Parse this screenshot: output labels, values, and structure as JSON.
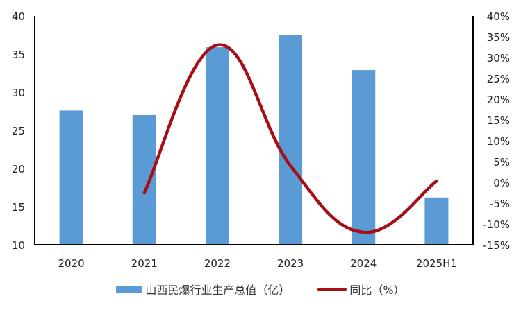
{
  "chart_data": {
    "type": "bar+line",
    "title": "",
    "categories": [
      "2020",
      "2021",
      "2022",
      "2023",
      "2024",
      "2025H1"
    ],
    "series": [
      {
        "name": "山西民爆行业生产总值（亿）",
        "type": "bar",
        "axis": "left",
        "color": "#5b9bd5",
        "values": [
          27.6,
          27.0,
          35.9,
          37.5,
          32.9,
          16.2
        ]
      },
      {
        "name": "同比（%）",
        "type": "line",
        "axis": "right",
        "color": "#a50f15",
        "smooth": true,
        "values": [
          null,
          -2.5,
          33.0,
          4.0,
          -12.0,
          0.3
        ]
      }
    ],
    "left_axis": {
      "min": 10,
      "max": 40,
      "ticks": [
        "40",
        "35",
        "30",
        "25",
        "20",
        "15",
        "10"
      ]
    },
    "right_axis": {
      "min": -15,
      "max": 40,
      "ticks": [
        "40%",
        "35%",
        "30%",
        "25%",
        "20%",
        "15%",
        "10%",
        "5%",
        "0%",
        "-5%",
        "-10%",
        "-15%"
      ]
    },
    "grid": false,
    "legend_position": "bottom"
  },
  "legend": {
    "bar_label": "山西民爆行业生产总值（亿）",
    "line_label": "同比（%）"
  }
}
